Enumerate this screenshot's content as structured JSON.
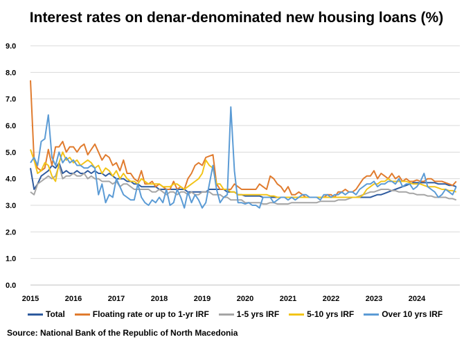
{
  "chart_data": {
    "type": "line",
    "title": "Interest rates on denar-denominated new housing loans (%)",
    "xlabel": "",
    "ylabel": "",
    "ylim": [
      0,
      9
    ],
    "yticks": [
      "0.0",
      "1.0",
      "2.0",
      "3.0",
      "4.0",
      "5.0",
      "6.0",
      "7.0",
      "8.0",
      "9.0"
    ],
    "xticks": [
      "2015",
      "2016",
      "2017",
      "2018",
      "2019",
      "2020",
      "2021",
      "2022",
      "2023",
      "2024"
    ],
    "x_start": 2015.0,
    "x_step_years": 0.08333,
    "grid": "horizontal",
    "legend_position": "bottom",
    "series": [
      {
        "name": "Total",
        "color": "#2e5a9e",
        "values": [
          4.4,
          3.6,
          3.8,
          4.1,
          4.2,
          4.3,
          4.5,
          4.4,
          4.6,
          4.2,
          4.3,
          4.2,
          4.2,
          4.3,
          4.2,
          4.2,
          4.3,
          4.2,
          4.3,
          4.2,
          4.2,
          4.1,
          4.2,
          4.1,
          4.0,
          4.0,
          4.0,
          3.9,
          3.9,
          3.8,
          3.8,
          3.7,
          3.7,
          3.7,
          3.7,
          3.7,
          3.6,
          3.6,
          3.6,
          3.6,
          3.6,
          3.6,
          3.6,
          3.6,
          3.5,
          3.5,
          3.5,
          3.5,
          3.5,
          3.5,
          3.6,
          3.6,
          3.6,
          3.6,
          3.6,
          3.5,
          3.5,
          3.5,
          3.4,
          3.4,
          3.35,
          3.35,
          3.35,
          3.35,
          3.35,
          3.3,
          3.3,
          3.3,
          3.3,
          3.3,
          3.3,
          3.3,
          3.3,
          3.3,
          3.3,
          3.3,
          3.3,
          3.3,
          3.3,
          3.3,
          3.3,
          3.3,
          3.3,
          3.3,
          3.3,
          3.3,
          3.3,
          3.3,
          3.3,
          3.3,
          3.3,
          3.3,
          3.3,
          3.3,
          3.3,
          3.3,
          3.35,
          3.4,
          3.4,
          3.45,
          3.5,
          3.55,
          3.6,
          3.65,
          3.7,
          3.75,
          3.8,
          3.85,
          3.85,
          3.85,
          3.85,
          3.85,
          3.85,
          3.85,
          3.8,
          3.8,
          3.8,
          3.75,
          3.75,
          3.7
        ]
      },
      {
        "name": "Floating rate or up to 1-yr IRF",
        "color": "#e07b2e",
        "values": [
          7.7,
          4.7,
          4.4,
          4.3,
          4.4,
          5.1,
          4.5,
          5.2,
          5.2,
          5.4,
          5.0,
          5.2,
          5.2,
          5.0,
          5.2,
          5.3,
          4.9,
          5.1,
          5.3,
          5.0,
          4.7,
          4.9,
          4.8,
          4.5,
          4.6,
          4.3,
          4.7,
          4.2,
          4.2,
          4.0,
          3.9,
          4.3,
          3.8,
          3.8,
          3.9,
          3.7,
          3.8,
          3.7,
          3.6,
          3.6,
          3.9,
          3.6,
          3.7,
          3.6,
          4.0,
          4.2,
          4.5,
          4.6,
          4.5,
          4.8,
          4.85,
          4.9,
          3.8,
          3.6,
          3.6,
          3.6,
          3.6,
          3.8,
          3.7,
          3.6,
          3.6,
          3.6,
          3.6,
          3.6,
          3.8,
          3.7,
          3.6,
          4.1,
          4.0,
          3.8,
          3.7,
          3.5,
          3.7,
          3.4,
          3.4,
          3.5,
          3.4,
          3.3,
          3.3,
          3.3,
          3.3,
          3.3,
          3.3,
          3.4,
          3.4,
          3.3,
          3.5,
          3.5,
          3.6,
          3.5,
          3.5,
          3.6,
          3.8,
          4.0,
          4.1,
          4.1,
          4.3,
          4.0,
          4.2,
          4.1,
          4.0,
          4.2,
          4.0,
          4.1,
          3.9,
          4.0,
          3.9,
          3.9,
          3.95,
          3.9,
          3.9,
          4.0,
          4.0,
          3.9,
          3.9,
          3.9,
          3.85,
          3.8,
          3.75,
          3.9
        ]
      },
      {
        "name": "1-5 yrs IRF",
        "color": "#a5a5a5",
        "values": [
          3.5,
          3.4,
          3.8,
          3.9,
          4.0,
          4.1,
          4.0,
          4.1,
          4.5,
          4.0,
          4.1,
          4.1,
          4.2,
          4.1,
          4.1,
          4.2,
          4.0,
          4.1,
          4.0,
          4.0,
          3.9,
          3.9,
          3.9,
          3.8,
          3.9,
          3.7,
          3.8,
          3.8,
          3.7,
          3.6,
          3.6,
          3.6,
          3.6,
          3.6,
          3.5,
          3.5,
          3.6,
          3.5,
          3.4,
          3.5,
          3.5,
          3.4,
          3.5,
          3.5,
          3.4,
          3.5,
          3.4,
          3.4,
          3.5,
          3.5,
          3.5,
          3.4,
          3.4,
          3.4,
          3.3,
          3.3,
          3.2,
          3.2,
          3.2,
          3.2,
          3.1,
          3.1,
          3.1,
          3.1,
          3.1,
          3.05,
          3.05,
          3.1,
          3.1,
          3.05,
          3.05,
          3.05,
          3.05,
          3.1,
          3.1,
          3.1,
          3.1,
          3.1,
          3.1,
          3.1,
          3.1,
          3.15,
          3.15,
          3.15,
          3.15,
          3.15,
          3.2,
          3.2,
          3.2,
          3.25,
          3.3,
          3.3,
          3.35,
          3.4,
          3.45,
          3.5,
          3.5,
          3.55,
          3.6,
          3.6,
          3.6,
          3.55,
          3.55,
          3.5,
          3.5,
          3.5,
          3.45,
          3.45,
          3.4,
          3.4,
          3.4,
          3.35,
          3.35,
          3.3,
          3.3,
          3.3,
          3.3,
          3.25,
          3.25,
          3.2
        ]
      },
      {
        "name": "5-10 yrs IRF",
        "color": "#f2c418",
        "values": [
          5.1,
          4.7,
          4.2,
          4.3,
          4.6,
          4.5,
          4.1,
          3.9,
          4.6,
          5.0,
          4.7,
          4.8,
          4.6,
          4.7,
          4.5,
          4.6,
          4.7,
          4.6,
          4.4,
          4.5,
          4.2,
          4.4,
          4.3,
          4.1,
          4.3,
          4.0,
          4.2,
          4.0,
          3.9,
          3.9,
          3.8,
          4.0,
          3.9,
          3.8,
          3.8,
          3.8,
          3.8,
          3.7,
          3.7,
          3.7,
          3.8,
          3.8,
          3.7,
          3.6,
          3.7,
          3.8,
          3.9,
          4.0,
          4.2,
          4.7,
          4.5,
          4.4,
          3.8,
          3.8,
          3.6,
          3.6,
          3.5,
          3.5,
          3.4,
          3.4,
          3.4,
          3.4,
          3.4,
          3.4,
          3.4,
          3.4,
          3.4,
          3.35,
          3.35,
          3.3,
          3.3,
          3.3,
          3.3,
          3.3,
          3.3,
          3.3,
          3.3,
          3.3,
          3.3,
          3.3,
          3.3,
          3.3,
          3.3,
          3.3,
          3.3,
          3.3,
          3.3,
          3.3,
          3.3,
          3.3,
          3.3,
          3.3,
          3.3,
          3.4,
          3.6,
          3.7,
          3.8,
          3.8,
          3.9,
          3.9,
          4.0,
          3.9,
          3.9,
          3.9,
          3.9,
          3.9,
          3.85,
          3.8,
          3.8,
          3.8,
          3.75,
          3.7,
          3.7,
          3.7,
          3.65,
          3.6,
          3.6,
          3.55,
          3.55,
          3.5
        ]
      },
      {
        "name": "Over 10 yrs IRF",
        "color": "#5b9bd5",
        "values": [
          4.6,
          4.8,
          4.5,
          5.4,
          5.5,
          6.4,
          4.8,
          4.5,
          5.0,
          4.6,
          4.8,
          4.6,
          4.7,
          4.5,
          4.5,
          4.4,
          4.4,
          4.5,
          4.4,
          3.4,
          3.8,
          3.1,
          3.4,
          3.3,
          4.0,
          3.7,
          3.4,
          3.3,
          3.2,
          3.2,
          3.8,
          3.3,
          3.1,
          3.0,
          3.2,
          3.1,
          3.3,
          3.1,
          3.6,
          3.0,
          3.1,
          3.6,
          3.3,
          2.9,
          3.5,
          3.1,
          3.4,
          3.2,
          2.9,
          3.1,
          3.8,
          4.5,
          3.6,
          3.1,
          3.3,
          3.4,
          6.7,
          4.3,
          3.1,
          3.1,
          3.05,
          3.1,
          3.0,
          3.0,
          2.9,
          3.3,
          3.3,
          3.3,
          3.1,
          3.2,
          3.3,
          3.3,
          3.2,
          3.3,
          3.2,
          3.3,
          3.4,
          3.4,
          3.3,
          3.3,
          3.3,
          3.2,
          3.4,
          3.4,
          3.3,
          3.4,
          3.4,
          3.5,
          3.4,
          3.5,
          3.5,
          3.4,
          3.6,
          3.7,
          3.8,
          3.8,
          3.9,
          3.7,
          3.8,
          3.8,
          3.9,
          3.9,
          3.8,
          4.0,
          3.7,
          3.8,
          3.8,
          3.6,
          3.7,
          3.9,
          4.2,
          3.7,
          3.6,
          3.5,
          3.3,
          3.4,
          3.6,
          3.5,
          3.4,
          3.7
        ]
      }
    ]
  },
  "page": {
    "title": "Interest rates on denar-denominated new housing loans (%)",
    "source": "Source: National Bank of the Republic of North Macedonia"
  },
  "legend": [
    "Total",
    "Floating rate or up to 1-yr IRF",
    "1-5 yrs IRF",
    "5-10 yrs IRF",
    "Over 10 yrs IRF"
  ]
}
